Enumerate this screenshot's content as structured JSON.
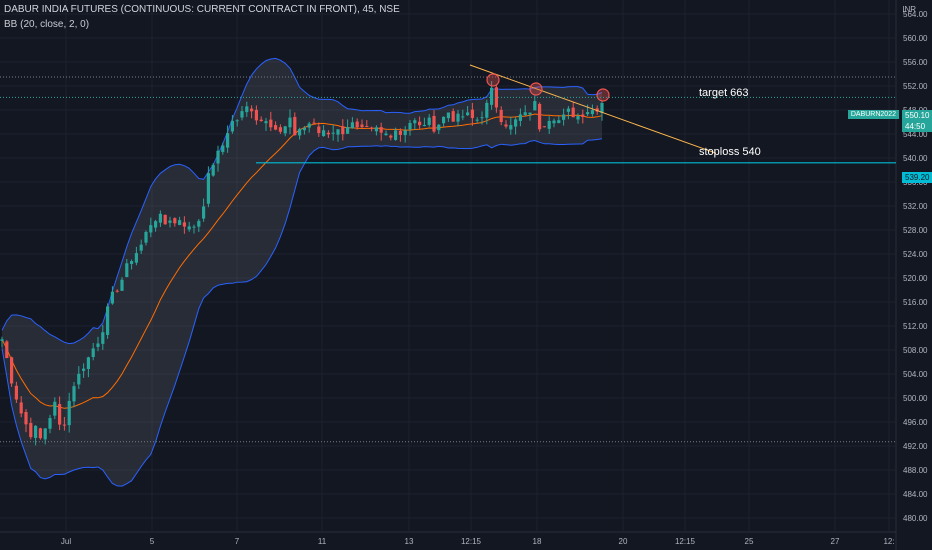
{
  "header": {
    "title": "DABUR INDIA FUTURES (CONTINUOUS: CURRENT CONTRACT IN FRONT), 45, NSE",
    "indicator": "BB (20, close, 2, 0)"
  },
  "currency": "INR",
  "annotations": {
    "target": "target 663",
    "stoploss": "stoploss 540"
  },
  "price_tags": {
    "symbol": "DABURN2022",
    "price": "550.10",
    "countdown": "44:50",
    "line_level": "539.20"
  },
  "colors": {
    "background": "#131722",
    "up": "#26a69a",
    "down": "#ef5350",
    "band_fill": "#787b86",
    "band_line": "#2962ff",
    "basis": "#ff6d00",
    "hline": "#00bcd4",
    "trendline": "#ffb74d",
    "grid": "#1e222d"
  },
  "chart_data": {
    "type": "candlestick",
    "y_axis": {
      "min": 478,
      "max": 566,
      "ticks": [
        "480.00",
        "484.00",
        "488.00",
        "492.00",
        "496.00",
        "500.00",
        "504.00",
        "508.00",
        "512.00",
        "516.00",
        "520.00",
        "524.00",
        "528.00",
        "532.00",
        "536.00",
        "540.00",
        "544.00",
        "548.00",
        "552.00",
        "556.00",
        "560.00",
        "564.00"
      ]
    },
    "x_axis": {
      "ticks": [
        "Jul",
        "5",
        "7",
        "11",
        "13",
        "12:15",
        "18",
        "20",
        "12:15",
        "25",
        "27",
        "12:"
      ]
    },
    "dotted_levels": [
      553.5,
      492.7
    ],
    "horizontal_line": 539.2,
    "trendline": {
      "from_price": 555.5,
      "to_price": 540.8
    },
    "circled_highs": [
      553.0,
      551.5,
      550.5
    ],
    "price_profile": [
      [
        0,
        511
      ],
      [
        5,
        508
      ],
      [
        10,
        504
      ],
      [
        15,
        501
      ],
      [
        20,
        498
      ],
      [
        25,
        496
      ],
      [
        30,
        494
      ],
      [
        35,
        495
      ],
      [
        40,
        493
      ],
      [
        45,
        495
      ],
      [
        50,
        497
      ],
      [
        55,
        499
      ],
      [
        60,
        495
      ],
      [
        62,
        493
      ],
      [
        65,
        497
      ],
      [
        70,
        500
      ],
      [
        75,
        503
      ],
      [
        80,
        504
      ],
      [
        85,
        506
      ],
      [
        90,
        507
      ],
      [
        95,
        509
      ],
      [
        100,
        510
      ],
      [
        105,
        513
      ],
      [
        110,
        516
      ],
      [
        115,
        518
      ],
      [
        120,
        519
      ],
      [
        125,
        521
      ],
      [
        130,
        523
      ],
      [
        135,
        524
      ],
      [
        140,
        525
      ],
      [
        145,
        527
      ],
      [
        150,
        529
      ],
      [
        155,
        530
      ],
      [
        160,
        530
      ],
      [
        165,
        529
      ],
      [
        170,
        530
      ],
      [
        175,
        529
      ],
      [
        180,
        530
      ],
      [
        185,
        529
      ],
      [
        190,
        528
      ],
      [
        195,
        529
      ],
      [
        200,
        530
      ],
      [
        203,
        532
      ],
      [
        206,
        535
      ],
      [
        210,
        538
      ],
      [
        215,
        540
      ],
      [
        220,
        541
      ],
      [
        225,
        543
      ],
      [
        230,
        546
      ],
      [
        235,
        546
      ],
      [
        240,
        547
      ],
      [
        245,
        548
      ],
      [
        250,
        549
      ],
      [
        255,
        547
      ],
      [
        260,
        546
      ],
      [
        265,
        547
      ],
      [
        270,
        546
      ],
      [
        275,
        545
      ],
      [
        280,
        544
      ],
      [
        285,
        545
      ],
      [
        290,
        546
      ],
      [
        295,
        544
      ],
      [
        300,
        545
      ],
      [
        305,
        545
      ],
      [
        310,
        546
      ],
      [
        315,
        545
      ],
      [
        320,
        544
      ],
      [
        325,
        545
      ],
      [
        330,
        544
      ],
      [
        335,
        545
      ],
      [
        340,
        544
      ],
      [
        345,
        545
      ],
      [
        350,
        546
      ],
      [
        355,
        545
      ],
      [
        360,
        544
      ],
      [
        365,
        545
      ],
      [
        370,
        544
      ],
      [
        375,
        545
      ],
      [
        380,
        544
      ],
      [
        385,
        544
      ],
      [
        390,
        544
      ],
      [
        395,
        545
      ],
      [
        400,
        544
      ],
      [
        405,
        545
      ],
      [
        410,
        546
      ],
      [
        415,
        546
      ],
      [
        420,
        545
      ],
      [
        425,
        546
      ],
      [
        430,
        546
      ],
      [
        435,
        545
      ],
      [
        440,
        546
      ],
      [
        445,
        547
      ],
      [
        450,
        548
      ],
      [
        455,
        546
      ],
      [
        460,
        547
      ],
      [
        465,
        547
      ],
      [
        470,
        547
      ],
      [
        475,
        546
      ],
      [
        480,
        547
      ],
      [
        485,
        548
      ],
      [
        490,
        550
      ],
      [
        493,
        552
      ],
      [
        496,
        549
      ],
      [
        500,
        547
      ],
      [
        505,
        546
      ],
      [
        510,
        545
      ],
      [
        515,
        546
      ],
      [
        520,
        547
      ],
      [
        525,
        547
      ],
      [
        530,
        548
      ],
      [
        535,
        549
      ],
      [
        540,
        545
      ],
      [
        545,
        546
      ],
      [
        550,
        547
      ],
      [
        555,
        547
      ],
      [
        560,
        546
      ],
      [
        565,
        547
      ],
      [
        570,
        548
      ],
      [
        575,
        547
      ],
      [
        580,
        547
      ],
      [
        585,
        548
      ],
      [
        590,
        548
      ],
      [
        595,
        548
      ],
      [
        600,
        549
      ],
      [
        605,
        550
      ]
    ]
  }
}
